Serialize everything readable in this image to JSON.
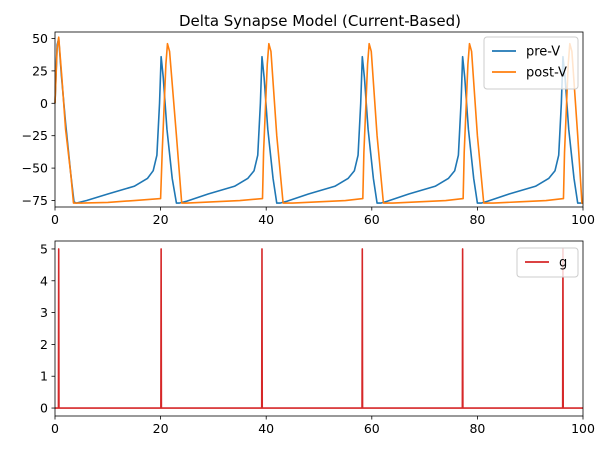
{
  "chart_data": [
    {
      "type": "line",
      "title": "Delta Synapse Model (Current-Based)",
      "xlabel": "",
      "ylabel": "",
      "xlim": [
        0,
        100
      ],
      "ylim": [
        -80,
        55
      ],
      "xticks": [
        0,
        20,
        40,
        60,
        80,
        100
      ],
      "yticks": [
        -75,
        -50,
        -25,
        0,
        25,
        50
      ],
      "xtick_labels": [
        "0",
        "20",
        "40",
        "60",
        "80",
        "100"
      ],
      "ytick_labels": [
        "−75",
        "−50",
        "−25",
        "0",
        "25",
        "50"
      ],
      "grid": false,
      "legend_position": "top-right",
      "series": [
        {
          "name": "pre-V",
          "color": "#1f77b4",
          "points": [
            [
              0,
              0
            ],
            [
              0.4,
              45
            ],
            [
              0.7,
              50
            ],
            [
              1.2,
              22
            ],
            [
              2,
              -15
            ],
            [
              3,
              -55
            ],
            [
              3.6,
              -76
            ],
            [
              4,
              -77
            ],
            [
              6,
              -75
            ],
            [
              10,
              -70
            ],
            [
              15,
              -64
            ],
            [
              17.5,
              -58
            ],
            [
              18.6,
              -52
            ],
            [
              19.3,
              -40
            ],
            [
              19.8,
              0
            ],
            [
              20.1,
              36
            ],
            [
              20.5,
              20
            ],
            [
              21.2,
              -20
            ],
            [
              22.2,
              -58
            ],
            [
              23,
              -77
            ],
            [
              23.5,
              -77
            ],
            [
              25,
              -75.5
            ],
            [
              29,
              -70
            ],
            [
              34,
              -64
            ],
            [
              36.5,
              -58
            ],
            [
              37.7,
              -52
            ],
            [
              38.4,
              -40
            ],
            [
              38.9,
              0
            ],
            [
              39.2,
              36
            ],
            [
              39.6,
              20
            ],
            [
              40.3,
              -20
            ],
            [
              41.3,
              -58
            ],
            [
              42,
              -77
            ],
            [
              42.6,
              -77
            ],
            [
              44,
              -75.5
            ],
            [
              48,
              -70
            ],
            [
              53,
              -64
            ],
            [
              55.5,
              -58
            ],
            [
              56.7,
              -52
            ],
            [
              57.4,
              -40
            ],
            [
              57.9,
              0
            ],
            [
              58.2,
              36
            ],
            [
              58.6,
              20
            ],
            [
              59.3,
              -20
            ],
            [
              60.3,
              -58
            ],
            [
              61,
              -77
            ],
            [
              61.7,
              -77
            ],
            [
              63,
              -75.5
            ],
            [
              67,
              -70
            ],
            [
              72,
              -64
            ],
            [
              74.5,
              -58
            ],
            [
              75.7,
              -52
            ],
            [
              76.4,
              -40
            ],
            [
              76.9,
              0
            ],
            [
              77.2,
              36
            ],
            [
              77.6,
              20
            ],
            [
              78.3,
              -20
            ],
            [
              79.3,
              -58
            ],
            [
              80,
              -77
            ],
            [
              80.7,
              -77
            ],
            [
              82,
              -75.5
            ],
            [
              86,
              -70
            ],
            [
              91,
              -64
            ],
            [
              93.5,
              -58
            ],
            [
              94.7,
              -52
            ],
            [
              95.4,
              -40
            ],
            [
              95.9,
              0
            ],
            [
              96.2,
              36
            ],
            [
              96.6,
              20
            ],
            [
              97.3,
              -20
            ],
            [
              98.3,
              -58
            ],
            [
              99,
              -77
            ],
            [
              100,
              -77
            ]
          ]
        },
        {
          "name": "post-V",
          "color": "#ff7f0e",
          "points": [
            [
              0,
              0
            ],
            [
              0.4,
              42
            ],
            [
              0.7,
              51
            ],
            [
              1.3,
              20
            ],
            [
              2,
              -20
            ],
            [
              3,
              -55
            ],
            [
              3.5,
              -77
            ],
            [
              5,
              -77
            ],
            [
              10,
              -76.5
            ],
            [
              15,
              -75
            ],
            [
              20,
              -73.5
            ],
            [
              20.3,
              -38
            ],
            [
              21,
              30
            ],
            [
              21.3,
              46
            ],
            [
              21.7,
              40
            ],
            [
              23,
              -25
            ],
            [
              24,
              -77
            ],
            [
              25,
              -77
            ],
            [
              30,
              -76
            ],
            [
              35,
              -75
            ],
            [
              39.3,
              -73.5
            ],
            [
              39.5,
              -38
            ],
            [
              40.2,
              30
            ],
            [
              40.5,
              46
            ],
            [
              40.9,
              40
            ],
            [
              42,
              -25
            ],
            [
              43.2,
              -77
            ],
            [
              45,
              -77
            ],
            [
              50,
              -76
            ],
            [
              55,
              -75
            ],
            [
              58.3,
              -73.5
            ],
            [
              58.5,
              -38
            ],
            [
              59.2,
              30
            ],
            [
              59.5,
              46
            ],
            [
              59.9,
              40
            ],
            [
              61,
              -25
            ],
            [
              62.2,
              -77
            ],
            [
              64,
              -77
            ],
            [
              69,
              -76
            ],
            [
              74,
              -75
            ],
            [
              77.3,
              -73.5
            ],
            [
              77.5,
              -38
            ],
            [
              78.2,
              30
            ],
            [
              78.5,
              46
            ],
            [
              78.9,
              40
            ],
            [
              80,
              -25
            ],
            [
              81.2,
              -77
            ],
            [
              83,
              -77
            ],
            [
              88,
              -76
            ],
            [
              93,
              -75
            ],
            [
              96.3,
              -73.5
            ],
            [
              96.5,
              -38
            ],
            [
              97.2,
              30
            ],
            [
              97.5,
              46
            ],
            [
              97.9,
              40
            ],
            [
              99,
              -25
            ],
            [
              99.8,
              -77
            ],
            [
              100,
              -77
            ]
          ]
        }
      ]
    },
    {
      "type": "line",
      "title": "",
      "xlabel": "",
      "ylabel": "",
      "xlim": [
        0,
        100
      ],
      "ylim": [
        -0.25,
        5.25
      ],
      "xticks": [
        0,
        20,
        40,
        60,
        80,
        100
      ],
      "yticks": [
        0,
        1,
        2,
        3,
        4,
        5
      ],
      "xtick_labels": [
        "0",
        "20",
        "40",
        "60",
        "80",
        "100"
      ],
      "ytick_labels": [
        "0",
        "1",
        "2",
        "3",
        "4",
        "5"
      ],
      "grid": false,
      "legend_position": "top-right",
      "series": [
        {
          "name": "g",
          "color": "#d62728",
          "points": [
            [
              0,
              0
            ],
            [
              0.65,
              0
            ],
            [
              0.7,
              5
            ],
            [
              0.75,
              0
            ],
            [
              20.05,
              0
            ],
            [
              20.1,
              5
            ],
            [
              20.15,
              0
            ],
            [
              39.15,
              0
            ],
            [
              39.2,
              5
            ],
            [
              39.25,
              0
            ],
            [
              58.15,
              0
            ],
            [
              58.2,
              5
            ],
            [
              58.25,
              0
            ],
            [
              77.15,
              0
            ],
            [
              77.2,
              5
            ],
            [
              77.25,
              0
            ],
            [
              96.15,
              0
            ],
            [
              96.2,
              5
            ],
            [
              96.25,
              0
            ],
            [
              100,
              0
            ]
          ]
        }
      ]
    }
  ]
}
